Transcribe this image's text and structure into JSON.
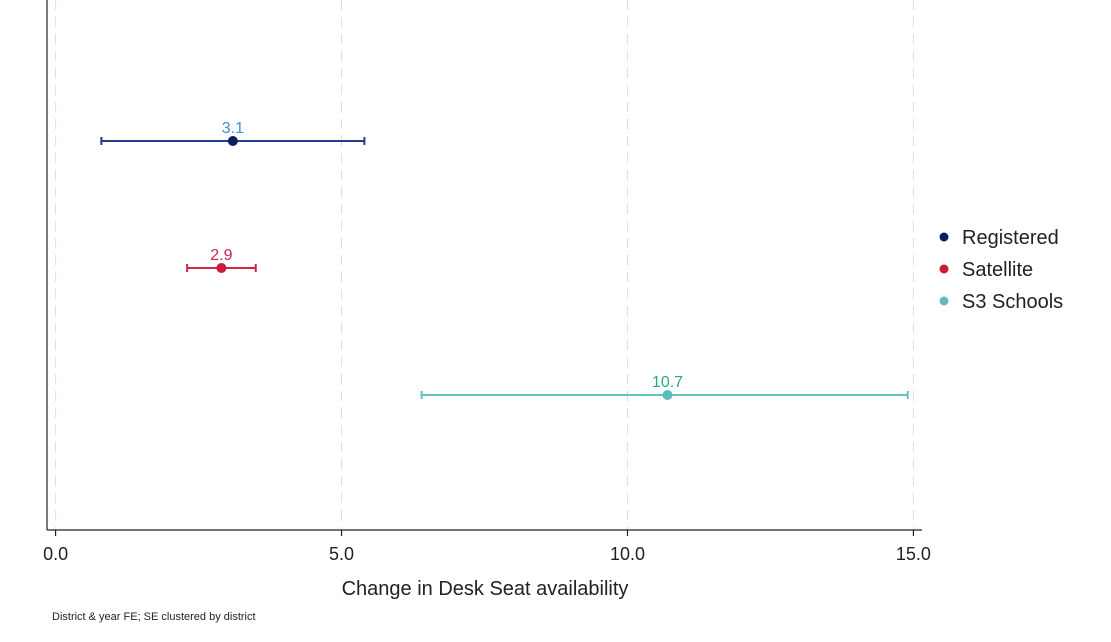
{
  "chart_data": {
    "type": "scatter",
    "subtype": "coefficient-plot-with-confidence-intervals",
    "xlabel": "Change in Desk Seat availability",
    "xlim": [
      -0.15,
      15.15
    ],
    "xticks": [
      0.0,
      5.0,
      10.0,
      15.0
    ],
    "x_tick_labels": [
      "0.0",
      "5.0",
      "10.0",
      "15.0"
    ],
    "grid": "vertical dashed",
    "legend_position": "right",
    "note": "District & year FE; SE clustered by district",
    "series": [
      {
        "name": "Registered",
        "value": 3.1,
        "lower": 0.8,
        "upper": 5.4,
        "label": "3.1",
        "color": "#1f3f8c",
        "marker_color": "#0b1f5c",
        "label_color": "#3d8fe0"
      },
      {
        "name": "Satellite",
        "value": 2.9,
        "lower": 2.3,
        "upper": 3.5,
        "label": "2.9",
        "color": "#d02547",
        "marker_color": "#c81e3a",
        "label_color": "#d02547"
      },
      {
        "name": "S3 Schools",
        "value": 10.7,
        "lower": 6.4,
        "upper": 14.9,
        "label": "10.7",
        "color": "#62c2c0",
        "marker_color": "#5bbdb9",
        "label_color": "#2aa88a"
      }
    ]
  }
}
